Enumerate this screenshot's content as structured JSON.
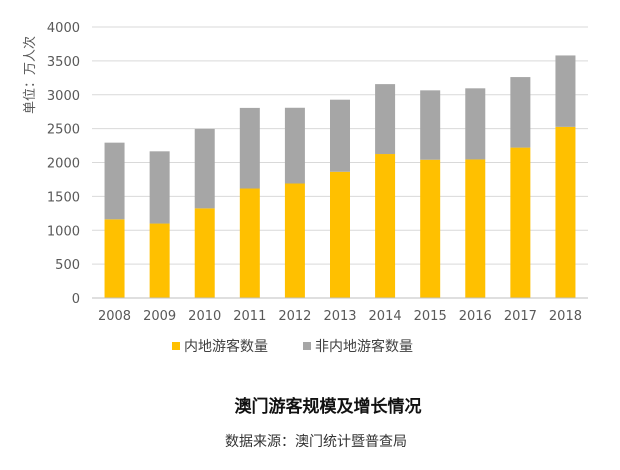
{
  "chart_data": {
    "type": "bar",
    "stacked": true,
    "title": "澳门游客规模及增长情况",
    "source": "数据来源：澳门统计暨普查局",
    "ylabel": "单位：万人次",
    "xlabel": "",
    "ylim": [
      0,
      4000
    ],
    "yticks": [
      0,
      500,
      1000,
      1500,
      2000,
      2500,
      3000,
      3500,
      4000
    ],
    "grid": true,
    "legend_position": "bottom",
    "categories": [
      "2008",
      "2009",
      "2010",
      "2011",
      "2012",
      "2013",
      "2014",
      "2015",
      "2016",
      "2017",
      "2018"
    ],
    "series": [
      {
        "name": "内地游客数量",
        "color": "#FFC000",
        "values": [
          1161,
          1099,
          1323,
          1616,
          1690,
          1863,
          2125,
          2041,
          2045,
          2220,
          2526
        ]
      },
      {
        "name": "非内地游客数量",
        "color": "#A6A6A6",
        "values": [
          1132,
          1066,
          1173,
          1190,
          1118,
          1064,
          1032,
          1024,
          1050,
          1041,
          1054
        ]
      }
    ]
  }
}
